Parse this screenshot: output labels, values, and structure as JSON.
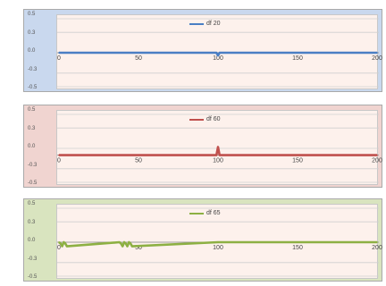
{
  "chart_data": [
    {
      "type": "line",
      "background": "#c9d8ee",
      "plot_background": "#fdf1ec",
      "series": [
        {
          "name": "df 20",
          "color": "#4a7ec4",
          "x": [
            0,
            50,
            99,
            100,
            101,
            150,
            200
          ],
          "values": [
            0.0,
            0.0,
            0.0,
            -0.04,
            0.0,
            0.0,
            0.0
          ]
        }
      ],
      "xlim": [
        0,
        200
      ],
      "ylim": [
        -0.5,
        0.5
      ],
      "x_ticks": [
        "0",
        "50",
        "100",
        "150",
        "200"
      ],
      "y_ticks": [
        "0.5",
        "0.3",
        "0.0",
        "-0.3",
        "-0.5"
      ],
      "x_axis_at_y": 0.0,
      "grid": true,
      "legend": "top-center"
    },
    {
      "type": "line",
      "background": "#f0d4d0",
      "plot_background": "#fdf1ec",
      "series": [
        {
          "name": "df 60",
          "color": "#c0504d",
          "x": [
            0,
            50,
            99,
            100,
            101,
            150,
            200
          ],
          "values": [
            -0.1,
            -0.1,
            -0.1,
            0.02,
            -0.1,
            -0.1,
            -0.1
          ]
        }
      ],
      "xlim": [
        0,
        200
      ],
      "ylim": [
        -0.5,
        0.5
      ],
      "x_ticks": [
        "0",
        "50",
        "100",
        "150",
        "200"
      ],
      "y_ticks": [
        "0.5",
        "0.3",
        "0.0",
        "-0.3",
        "-0.5"
      ],
      "x_axis_at_y": -0.1,
      "grid": true,
      "legend": "top-center"
    },
    {
      "type": "line",
      "background": "#d9e4bf",
      "plot_background": "#fdf1ec",
      "series": [
        {
          "name": "df 65",
          "color": "#8db043",
          "x": [
            0,
            1,
            2,
            3,
            4,
            5,
            38,
            39,
            40,
            41,
            42,
            43,
            44,
            45,
            46,
            100,
            150,
            200
          ],
          "values": [
            0.0,
            -0.02,
            -0.06,
            0.0,
            -0.02,
            -0.06,
            0.0,
            -0.02,
            -0.06,
            0.0,
            -0.02,
            -0.06,
            0.0,
            -0.02,
            -0.06,
            0.0,
            0.0,
            0.0
          ]
        }
      ],
      "xlim": [
        0,
        200
      ],
      "ylim": [
        -0.5,
        0.5
      ],
      "x_ticks": [
        "0",
        "50",
        "100",
        "150",
        "200"
      ],
      "y_ticks": [
        "0.5",
        "0.3",
        "0.0",
        "-0.3",
        "-0.5"
      ],
      "x_axis_at_y": 0.0,
      "grid": true,
      "legend": "top-center"
    }
  ]
}
